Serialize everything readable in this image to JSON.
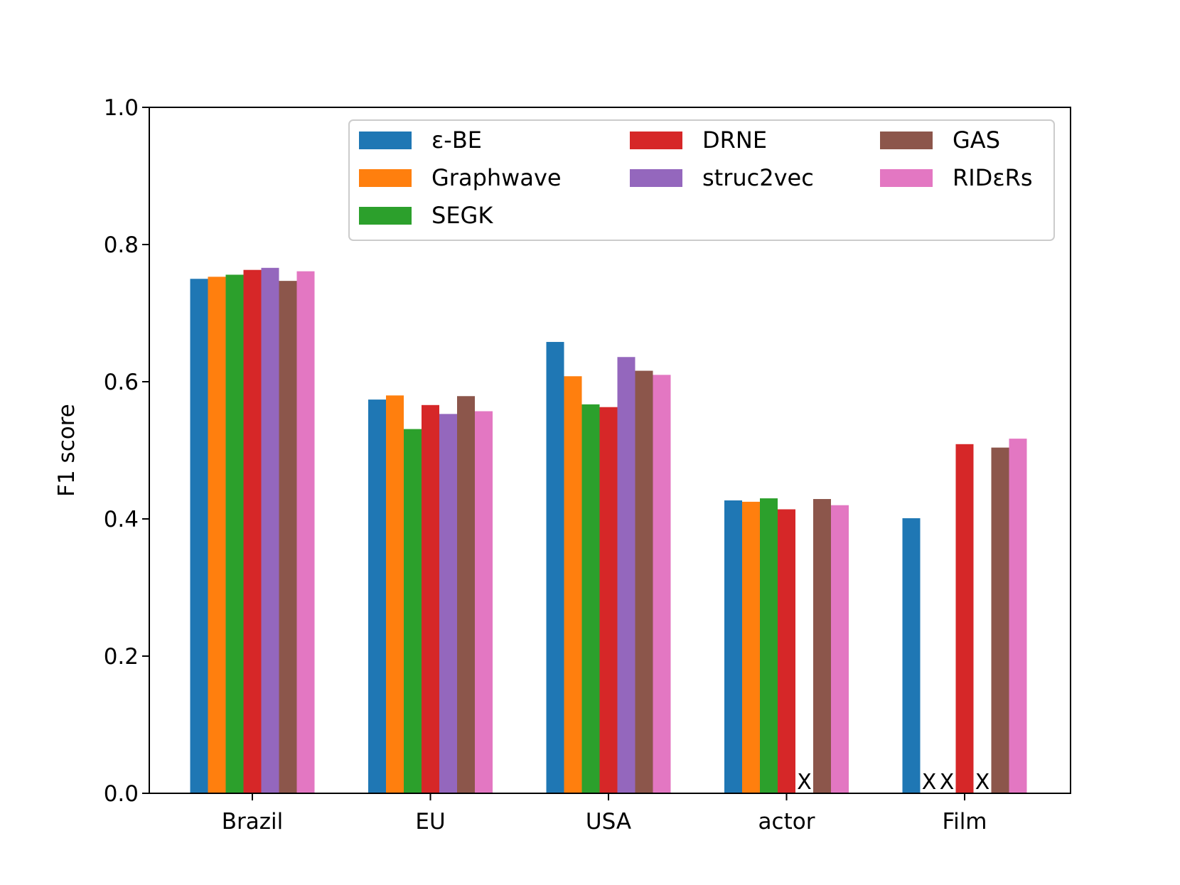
{
  "chart_data": {
    "type": "bar",
    "title": "",
    "xlabel": "",
    "ylabel": "F1 score",
    "ylim": [
      0.0,
      1.0
    ],
    "yticks": [
      "0.0",
      "0.2",
      "0.4",
      "0.6",
      "0.8",
      "1.0"
    ],
    "grid": false,
    "legend_position": "top-right",
    "legend_columns": 3,
    "categories": [
      "Brazil",
      "EU",
      "USA",
      "actor",
      "Film"
    ],
    "missing_marker": "X",
    "series": [
      {
        "name": "ε-BE",
        "color": "#1f77b4",
        "values": [
          0.75,
          0.574,
          0.658,
          0.427,
          0.401
        ]
      },
      {
        "name": "Graphwave",
        "color": "#ff7f0e",
        "values": [
          0.753,
          0.58,
          0.608,
          0.425,
          null
        ]
      },
      {
        "name": "SEGK",
        "color": "#2ca02c",
        "values": [
          0.756,
          0.531,
          0.567,
          0.43,
          null
        ]
      },
      {
        "name": "DRNE",
        "color": "#d62728",
        "values": [
          0.763,
          0.566,
          0.563,
          0.414,
          0.509
        ]
      },
      {
        "name": "struc2vec",
        "color": "#9467bd",
        "values": [
          0.766,
          0.553,
          0.636,
          null,
          null
        ]
      },
      {
        "name": "GAS",
        "color": "#8c564b",
        "values": [
          0.747,
          0.579,
          0.616,
          0.429,
          0.504
        ]
      },
      {
        "name": "RIDεRs",
        "color": "#e377c2",
        "values": [
          0.761,
          0.557,
          0.61,
          0.42,
          0.517
        ]
      }
    ]
  }
}
